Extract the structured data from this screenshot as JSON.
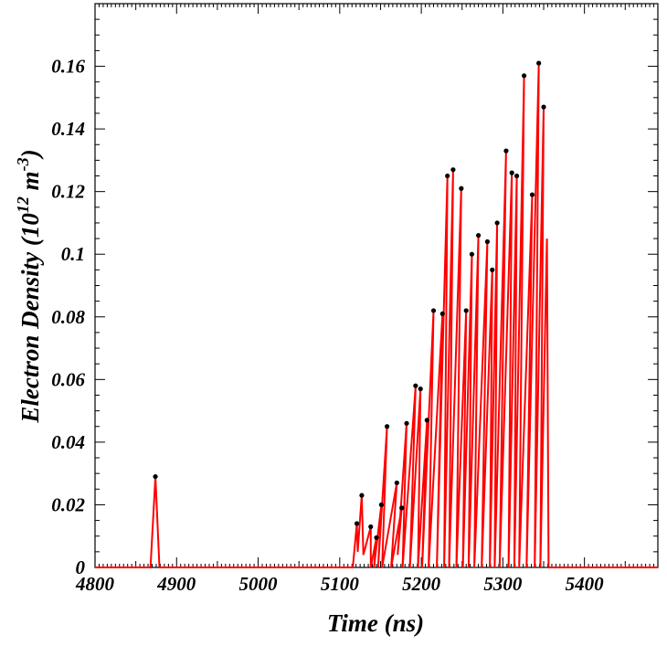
{
  "chart_data": {
    "type": "line",
    "title": "",
    "xlabel": "Time (ns)",
    "ylabel": {
      "main": "Electron Density (10",
      "sup1": "12",
      "mid": " m",
      "sup2": "-3",
      "end": ")"
    },
    "xlim": [
      4800,
      5490
    ],
    "ylim": [
      0,
      0.18
    ],
    "xticks": [
      4800,
      4900,
      5000,
      5100,
      5200,
      5300,
      5400
    ],
    "xtick_labels": [
      "4800",
      "4900",
      "5000",
      "5100",
      "5200",
      "5300",
      "5400"
    ],
    "yticks": [
      0,
      0.02,
      0.04,
      0.06,
      0.08,
      0.1,
      0.12,
      0.14,
      0.16
    ],
    "ytick_labels": [
      "0",
      "0.02",
      "0.04",
      "0.06",
      "0.08",
      "0.1",
      "0.12",
      "0.14",
      "0.16"
    ],
    "grid": false,
    "legend": "none",
    "line_color": "#ff0000",
    "marker_color": "#000000",
    "series": [
      {
        "peaks": [
          [
            4874,
            0.029
          ],
          [
            5121,
            0.014
          ],
          [
            5127,
            0.023
          ],
          [
            5138,
            0.013
          ],
          [
            5145,
            0.0095
          ],
          [
            5151,
            0.02
          ],
          [
            5158,
            0.045
          ],
          [
            5170,
            0.027
          ],
          [
            5176,
            0.019
          ],
          [
            5182,
            0.046
          ],
          [
            5193,
            0.058
          ],
          [
            5199,
            0.057
          ],
          [
            5207,
            0.047
          ],
          [
            5215,
            0.082
          ],
          [
            5226,
            0.081
          ],
          [
            5232,
            0.125
          ],
          [
            5239,
            0.127
          ],
          [
            5249,
            0.121
          ],
          [
            5255,
            0.082
          ],
          [
            5262,
            0.1
          ],
          [
            5270,
            0.106
          ],
          [
            5281,
            0.104
          ],
          [
            5287,
            0.095
          ],
          [
            5293,
            0.11
          ],
          [
            5304,
            0.133
          ],
          [
            5311,
            0.126
          ],
          [
            5317,
            0.125
          ],
          [
            5326,
            0.157
          ],
          [
            5336,
            0.119
          ],
          [
            5344,
            0.161
          ],
          [
            5350,
            0.147
          ]
        ],
        "drops": [
          [
            5116,
            0
          ],
          [
            5122,
            0.005
          ],
          [
            5129,
            0.004
          ],
          [
            5138,
            0
          ],
          [
            5142,
            0
          ],
          [
            5147,
            0
          ],
          [
            5152,
            0
          ],
          [
            5163,
            0
          ],
          [
            5171,
            0.004
          ],
          [
            5177,
            0
          ],
          [
            5186,
            0
          ],
          [
            5196,
            0
          ],
          [
            5201,
            0
          ],
          [
            5209,
            0
          ],
          [
            5219,
            0
          ],
          [
            5228,
            0
          ],
          [
            5234,
            0
          ],
          [
            5243,
            0
          ],
          [
            5251,
            0
          ],
          [
            5258,
            0
          ],
          [
            5265,
            0
          ],
          [
            5274,
            0
          ],
          [
            5284,
            0
          ],
          [
            5290,
            0
          ],
          [
            5296,
            0
          ],
          [
            5307,
            0
          ],
          [
            5314,
            0
          ],
          [
            5320,
            0
          ],
          [
            5329,
            0
          ],
          [
            5339,
            0
          ],
          [
            5346,
            0
          ],
          [
            5353,
            0
          ]
        ],
        "tail_peak": [
          5354,
          0.105
        ],
        "end": [
          5356,
          0
        ]
      }
    ]
  }
}
